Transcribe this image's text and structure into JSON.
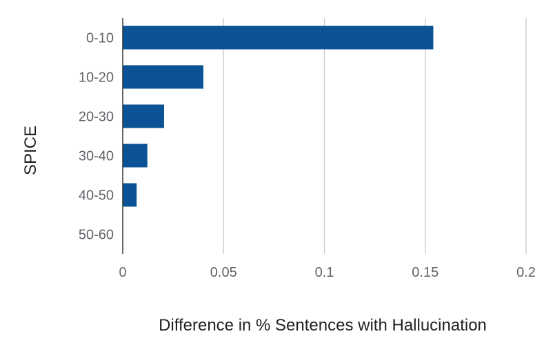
{
  "chart_data": {
    "type": "bar",
    "orientation": "horizontal",
    "categories": [
      "0-10",
      "10-20",
      "20-30",
      "30-40",
      "40-50",
      "50-60"
    ],
    "values": [
      0.154,
      0.04,
      0.0205,
      0.0122,
      0.0069,
      0
    ],
    "xlabel": "Difference in % Sentences with Hallucination",
    "ylabel": "SPICE",
    "xlim": [
      0,
      0.2
    ],
    "xticks": [
      0,
      0.05,
      0.1,
      0.15,
      0.2
    ],
    "xtick_labels": [
      "0",
      "0.05",
      "0.1",
      "0.15",
      "0.2"
    ],
    "grid": "vertical",
    "legend": "none",
    "bar_color": "#0b5394"
  }
}
